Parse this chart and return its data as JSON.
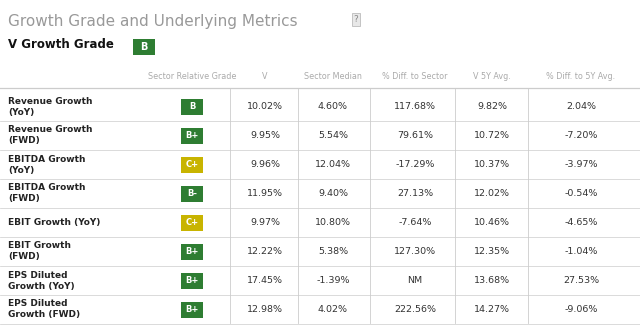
{
  "title": "Growth Grade and Underlying Metrics",
  "title_color": "#999999",
  "subtitle": "V Growth Grade",
  "subtitle_grade": "B",
  "subtitle_grade_bg": "#2e7d32",
  "subtitle_grade_fg": "#ffffff",
  "col_headers": [
    "Sector Relative Grade",
    "V",
    "Sector Median",
    "% Diff. to Sector",
    "V 5Y Avg.",
    "% Diff. to 5Y Avg."
  ],
  "col_header_color": "#aaaaaa",
  "rows": [
    {
      "label": "Revenue Growth\n(YoY)",
      "grade": "B",
      "grade_bg": "#2e7d32",
      "grade_fg": "#ffffff",
      "v": "10.02%",
      "med": "4.60%",
      "diff_sec": "117.68%",
      "avg": "9.82%",
      "diff_avg": "2.04%"
    },
    {
      "label": "Revenue Growth\n(FWD)",
      "grade": "B+",
      "grade_bg": "#2e7d32",
      "grade_fg": "#ffffff",
      "v": "9.95%",
      "med": "5.54%",
      "diff_sec": "79.61%",
      "avg": "10.72%",
      "diff_avg": "-7.20%"
    },
    {
      "label": "EBITDA Growth\n(YoY)",
      "grade": "C+",
      "grade_bg": "#c8b400",
      "grade_fg": "#ffffff",
      "v": "9.96%",
      "med": "12.04%",
      "diff_sec": "-17.29%",
      "avg": "10.37%",
      "diff_avg": "-3.97%"
    },
    {
      "label": "EBITDA Growth\n(FWD)",
      "grade": "B-",
      "grade_bg": "#2e7d32",
      "grade_fg": "#ffffff",
      "v": "11.95%",
      "med": "9.40%",
      "diff_sec": "27.13%",
      "avg": "12.02%",
      "diff_avg": "-0.54%"
    },
    {
      "label": "EBIT Growth (YoY)",
      "grade": "C+",
      "grade_bg": "#c8b400",
      "grade_fg": "#ffffff",
      "v": "9.97%",
      "med": "10.80%",
      "diff_sec": "-7.64%",
      "avg": "10.46%",
      "diff_avg": "-4.65%"
    },
    {
      "label": "EBIT Growth\n(FWD)",
      "grade": "B+",
      "grade_bg": "#2e7d32",
      "grade_fg": "#ffffff",
      "v": "12.22%",
      "med": "5.38%",
      "diff_sec": "127.30%",
      "avg": "12.35%",
      "diff_avg": "-1.04%"
    },
    {
      "label": "EPS Diluted\nGrowth (YoY)",
      "grade": "B+",
      "grade_bg": "#2e7d32",
      "grade_fg": "#ffffff",
      "v": "17.45%",
      "med": "-1.39%",
      "diff_sec": "NM",
      "avg": "13.68%",
      "diff_avg": "27.53%"
    },
    {
      "label": "EPS Diluted\nGrowth (FWD)",
      "grade": "B+",
      "grade_bg": "#2e7d32",
      "grade_fg": "#ffffff",
      "v": "12.98%",
      "med": "4.02%",
      "diff_sec": "222.56%",
      "avg": "14.27%",
      "diff_avg": "-9.06%"
    }
  ],
  "separator_color": "#cccccc",
  "row_label_color": "#222222",
  "cell_color": "#333333",
  "bg_color": "#ffffff",
  "fig_w": 6.4,
  "fig_h": 3.35,
  "dpi": 100
}
